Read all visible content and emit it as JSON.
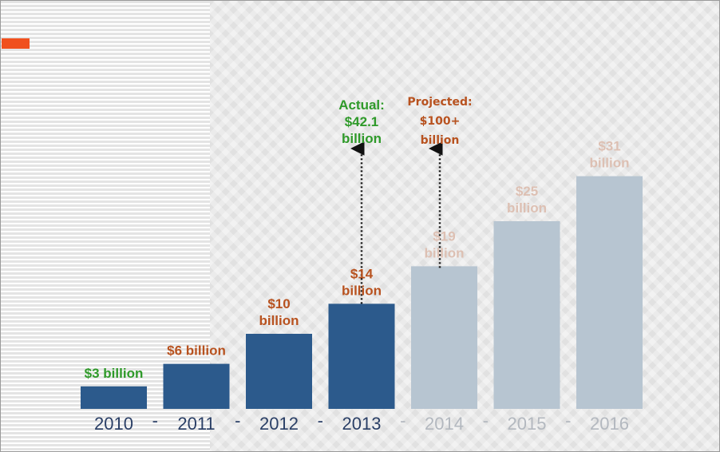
{
  "colors": {
    "actual_bar": "#2c5a8c",
    "projected_bar": "#b7c5d1",
    "actual_label": "#b8521f",
    "projected_label": "#ddc0b3",
    "highlight_label": "#2f9a2a",
    "axis_actual": "#2a3f66",
    "axis_projected": "#b3b8bf",
    "orange_tag": "#f0501e"
  },
  "chart_data": {
    "type": "bar",
    "title": "",
    "xlabel": "",
    "ylabel": "",
    "unit": "billion USD",
    "ylim": [
      0,
      40
    ],
    "categories": [
      "2010",
      "2011",
      "2012",
      "2013",
      "2014",
      "2015",
      "2016"
    ],
    "values": [
      3,
      6,
      10,
      14,
      19,
      25,
      31
    ],
    "status": [
      "actual",
      "actual",
      "actual",
      "actual",
      "projected",
      "projected",
      "projected"
    ],
    "separator": "-",
    "data_labels": [
      [
        "$3 billion"
      ],
      [
        "$6 billion"
      ],
      [
        "$10",
        "billion"
      ],
      [
        "$14",
        "billion"
      ],
      [
        "$19",
        "billion"
      ],
      [
        "$25",
        "billion"
      ],
      [
        "$31",
        "billion"
      ]
    ],
    "annotations": [
      {
        "category": "2013",
        "lines": [
          "Actual:",
          "$42.1",
          "billion"
        ],
        "value": 42.1
      },
      {
        "category": "2014",
        "lines": [
          "Projected:",
          "$100+",
          "billion"
        ],
        "value": 100
      }
    ]
  }
}
